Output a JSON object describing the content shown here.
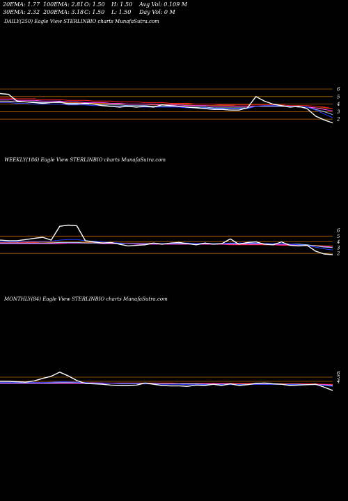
{
  "header": {
    "ema20": "20EMA: 1.77",
    "ema100": "100EMA: 2.81",
    "open": "O: 1.50",
    "high": "H: 1.50",
    "avg_vol": "Avg Vol: 0.109 M",
    "ema30": "30EMA: 2.32",
    "ema200": "200EMA: 3.18",
    "close": "C: 1.50",
    "low": "L: 1.50",
    "day_vol": "Day Vol: 0  M"
  },
  "colors": {
    "price": "#ffffff",
    "ma_blue": "#2a3cff",
    "ma_lightblue": "#9fd0ff",
    "ma_pink": "#ff40ff",
    "ma_red": "#ff2020",
    "ma_orange": "#c86400",
    "level_line": "#b35f00"
  },
  "chart_data": [
    {
      "type": "line",
      "title": "DAILY(250) Eagle  View  STERLINBIO charts MunafaSutra.com",
      "y_ticks": [
        "6",
        "5",
        "4",
        "3",
        "2"
      ],
      "level_lines": [
        6,
        5,
        4,
        3,
        2
      ],
      "x_count": 40,
      "series": [
        {
          "values": [
            5.4,
            5.3,
            4.4,
            4.3,
            4.2,
            4.1,
            4.2,
            4.3,
            4.0,
            4.0,
            4.1,
            4.0,
            3.8,
            3.7,
            3.6,
            3.7,
            3.6,
            3.7,
            3.6,
            3.9,
            3.8,
            3.7,
            3.6,
            3.5,
            3.4,
            3.3,
            3.3,
            3.2,
            3.2,
            3.5,
            5.0,
            4.4,
            4.0,
            3.8,
            3.6,
            3.7,
            3.4,
            2.4,
            1.9,
            1.5
          ]
        },
        {
          "values": [
            4.2,
            4.2,
            4.1,
            4.1,
            4.0,
            4.0,
            4.0,
            4.0,
            3.9,
            3.9,
            3.9,
            3.8,
            3.8,
            3.7,
            3.7,
            3.7,
            3.6,
            3.6,
            3.6,
            3.6,
            3.6,
            3.6,
            3.5,
            3.5,
            3.5,
            3.4,
            3.4,
            3.4,
            3.4,
            3.4,
            3.7,
            3.8,
            3.8,
            3.8,
            3.7,
            3.7,
            3.6,
            3.2,
            2.7,
            2.2
          ]
        },
        {
          "values": [
            4.4,
            4.4,
            4.3,
            4.3,
            4.3,
            4.2,
            4.2,
            4.2,
            4.1,
            4.1,
            4.0,
            4.0,
            3.9,
            3.9,
            3.9,
            3.8,
            3.8,
            3.8,
            3.7,
            3.7,
            3.7,
            3.7,
            3.6,
            3.6,
            3.6,
            3.5,
            3.5,
            3.5,
            3.5,
            3.5,
            3.7,
            3.7,
            3.7,
            3.7,
            3.7,
            3.6,
            3.6,
            3.3,
            3.0,
            2.6
          ]
        },
        {
          "values": [
            4.6,
            4.6,
            4.5,
            4.5,
            4.5,
            4.4,
            4.4,
            4.4,
            4.3,
            4.3,
            4.2,
            4.2,
            4.2,
            4.1,
            4.1,
            4.0,
            4.0,
            4.0,
            4.0,
            3.9,
            3.9,
            3.9,
            3.8,
            3.8,
            3.8,
            3.7,
            3.7,
            3.7,
            3.7,
            3.7,
            3.7,
            3.7,
            3.7,
            3.7,
            3.7,
            3.6,
            3.6,
            3.5,
            3.3,
            3.1
          ]
        },
        {
          "values": [
            4.8,
            4.8,
            4.7,
            4.7,
            4.7,
            4.6,
            4.6,
            4.6,
            4.5,
            4.5,
            4.5,
            4.4,
            4.4,
            4.4,
            4.3,
            4.3,
            4.3,
            4.2,
            4.2,
            4.2,
            4.1,
            4.1,
            4.1,
            4.0,
            4.0,
            4.0,
            3.9,
            3.9,
            3.9,
            3.9,
            3.9,
            3.9,
            3.9,
            3.9,
            3.8,
            3.8,
            3.8,
            3.7,
            3.6,
            3.4
          ]
        },
        {
          "values": [
            4.3,
            4.3,
            4.3,
            4.3,
            4.3,
            4.2,
            4.2,
            4.2,
            4.2,
            4.2,
            4.1,
            4.1,
            4.1,
            4.1,
            4.0,
            4.0,
            4.0,
            4.0,
            3.9,
            3.9,
            3.9,
            3.9,
            3.9,
            3.8,
            3.8,
            3.8,
            3.8,
            3.8,
            3.7,
            3.7,
            3.7,
            3.7,
            3.7,
            3.7,
            3.7,
            3.6,
            3.6,
            3.5,
            3.5,
            3.4
          ]
        }
      ]
    },
    {
      "type": "line",
      "title": "WEEKLY(186) Eagle  View  STERLINBIO charts MunafaSutra.com",
      "y_ticks": [
        "6",
        "5",
        "4",
        "3",
        "2"
      ],
      "level_lines": [
        5,
        4,
        2
      ],
      "x_count": 40,
      "series": [
        {
          "values": [
            4.3,
            4.2,
            4.2,
            4.4,
            4.6,
            4.8,
            4.3,
            6.7,
            6.9,
            6.8,
            4.2,
            4.0,
            3.8,
            3.9,
            3.6,
            3.3,
            3.4,
            3.5,
            3.8,
            3.6,
            3.8,
            3.9,
            3.7,
            3.5,
            3.8,
            3.6,
            3.7,
            4.5,
            3.6,
            3.9,
            4.0,
            3.6,
            3.5,
            4.0,
            3.4,
            3.3,
            3.4,
            2.4,
            1.9,
            1.8
          ]
        },
        {
          "values": [
            4.0,
            4.0,
            4.0,
            4.1,
            4.1,
            4.1,
            4.1,
            4.3,
            4.4,
            4.4,
            4.2,
            4.1,
            4.0,
            3.9,
            3.8,
            3.7,
            3.7,
            3.7,
            3.7,
            3.7,
            3.7,
            3.8,
            3.8,
            3.7,
            3.8,
            3.7,
            3.7,
            3.8,
            3.8,
            3.8,
            3.8,
            3.7,
            3.7,
            3.7,
            3.6,
            3.5,
            3.4,
            3.1,
            2.8,
            2.6
          ]
        },
        {
          "values": [
            3.8,
            3.8,
            3.8,
            3.8,
            3.8,
            3.8,
            3.8,
            3.9,
            3.9,
            3.9,
            3.8,
            3.8,
            3.8,
            3.8,
            3.7,
            3.7,
            3.7,
            3.7,
            3.7,
            3.7,
            3.7,
            3.7,
            3.7,
            3.7,
            3.7,
            3.7,
            3.7,
            3.7,
            3.7,
            3.7,
            3.7,
            3.7,
            3.7,
            3.7,
            3.6,
            3.6,
            3.5,
            3.3,
            3.1,
            3.0
          ]
        },
        {
          "values": [
            3.7,
            3.7,
            3.7,
            3.7,
            3.7,
            3.7,
            3.7,
            3.7,
            3.8,
            3.8,
            3.8,
            3.8,
            3.7,
            3.7,
            3.7,
            3.7,
            3.6,
            3.6,
            3.6,
            3.6,
            3.6,
            3.6,
            3.6,
            3.6,
            3.6,
            3.6,
            3.6,
            3.6,
            3.6,
            3.6,
            3.6,
            3.6,
            3.5,
            3.5,
            3.5,
            3.5,
            3.4,
            3.3,
            3.2,
            3.1
          ]
        },
        {
          "values": [
            3.9,
            3.9,
            3.9,
            3.9,
            3.9,
            3.8,
            3.8,
            3.8,
            3.8,
            3.8,
            3.8,
            3.8,
            3.8,
            3.7,
            3.7,
            3.7,
            3.7,
            3.7,
            3.7,
            3.7,
            3.6,
            3.6,
            3.6,
            3.6,
            3.6,
            3.6,
            3.6,
            3.5,
            3.5,
            3.5,
            3.5,
            3.5,
            3.5,
            3.4,
            3.4,
            3.4,
            3.3,
            3.3,
            3.2,
            3.1
          ]
        },
        {
          "values": [
            4.0,
            4.0,
            4.0,
            4.0,
            4.0,
            4.0,
            3.9,
            3.9,
            3.9,
            3.9,
            3.9,
            3.9,
            3.9,
            3.8,
            3.8,
            3.8,
            3.8,
            3.8,
            3.8,
            3.7,
            3.7,
            3.7,
            3.7,
            3.7,
            3.7,
            3.6,
            3.6,
            3.6,
            3.6,
            3.6,
            3.6,
            3.5,
            3.5,
            3.5,
            3.5,
            3.5,
            3.4,
            3.4,
            3.3,
            3.3
          ]
        }
      ]
    },
    {
      "type": "line",
      "title": "MONTHLY(84) Eagle  View  STERLINBIO charts MunafaSutra.com",
      "y_ticks": [
        "6",
        "5",
        "4"
      ],
      "level_lines": [
        5,
        4
      ],
      "x_count": 40,
      "series": [
        {
          "values": [
            4.0,
            4.0,
            3.9,
            3.8,
            4.1,
            4.7,
            5.2,
            6.2,
            5.3,
            4.2,
            3.5,
            3.4,
            3.3,
            3.1,
            3.0,
            3.0,
            3.1,
            3.6,
            3.3,
            3.0,
            2.9,
            2.9,
            2.8,
            3.1,
            3.0,
            3.3,
            3.0,
            3.4,
            3.0,
            3.2,
            3.5,
            3.6,
            3.4,
            3.3,
            3.0,
            3.1,
            3.2,
            3.3,
            2.6,
            1.8
          ]
        },
        {
          "values": [
            3.7,
            3.7,
            3.7,
            3.7,
            3.7,
            3.7,
            3.8,
            3.9,
            3.9,
            3.8,
            3.7,
            3.6,
            3.6,
            3.5,
            3.4,
            3.4,
            3.4,
            3.4,
            3.4,
            3.3,
            3.3,
            3.3,
            3.2,
            3.2,
            3.2,
            3.2,
            3.2,
            3.2,
            3.2,
            3.2,
            3.3,
            3.3,
            3.3,
            3.3,
            3.2,
            3.2,
            3.2,
            3.2,
            3.0,
            2.8
          ]
        },
        {
          "values": [
            3.6,
            3.6,
            3.6,
            3.6,
            3.6,
            3.6,
            3.6,
            3.7,
            3.7,
            3.7,
            3.6,
            3.6,
            3.6,
            3.5,
            3.5,
            3.5,
            3.5,
            3.5,
            3.5,
            3.4,
            3.4,
            3.4,
            3.4,
            3.4,
            3.3,
            3.3,
            3.3,
            3.3,
            3.3,
            3.3,
            3.3,
            3.3,
            3.3,
            3.3,
            3.3,
            3.3,
            3.2,
            3.2,
            3.1,
            3.0
          ]
        },
        {
          "values": [
            3.5,
            3.5,
            3.5,
            3.5,
            3.5,
            3.5,
            3.5,
            3.5,
            3.5,
            3.5,
            3.5,
            3.5,
            3.5,
            3.5,
            3.5,
            3.5,
            3.4,
            3.4,
            3.4,
            3.4,
            3.4,
            3.4,
            3.4,
            3.4,
            3.4,
            3.4,
            3.4,
            3.4,
            3.3,
            3.3,
            3.3,
            3.3,
            3.3,
            3.3,
            3.3,
            3.3,
            3.3,
            3.2,
            3.2,
            3.1
          ]
        },
        {
          "values": [
            3.7,
            3.7,
            3.7,
            3.7,
            3.7,
            3.7,
            3.7,
            3.7,
            3.7,
            3.7,
            3.7,
            3.7,
            3.6,
            3.6,
            3.6,
            3.6,
            3.6,
            3.6,
            3.6,
            3.6,
            3.6,
            3.5,
            3.5,
            3.5,
            3.5,
            3.5,
            3.5,
            3.5,
            3.5,
            3.5,
            3.5,
            3.4,
            3.4,
            3.4,
            3.4,
            3.4,
            3.4,
            3.4,
            3.3,
            3.3
          ]
        },
        {
          "values": [
            3.6,
            3.6,
            3.6,
            3.6,
            3.6,
            3.6,
            3.6,
            3.6,
            3.6,
            3.6,
            3.6,
            3.6,
            3.6,
            3.6,
            3.5,
            3.5,
            3.5,
            3.5,
            3.5,
            3.5,
            3.5,
            3.5,
            3.5,
            3.5,
            3.5,
            3.4,
            3.4,
            3.4,
            3.4,
            3.4,
            3.4,
            3.4,
            3.4,
            3.4,
            3.4,
            3.4,
            3.3,
            3.3,
            3.3,
            3.2
          ]
        }
      ]
    }
  ]
}
